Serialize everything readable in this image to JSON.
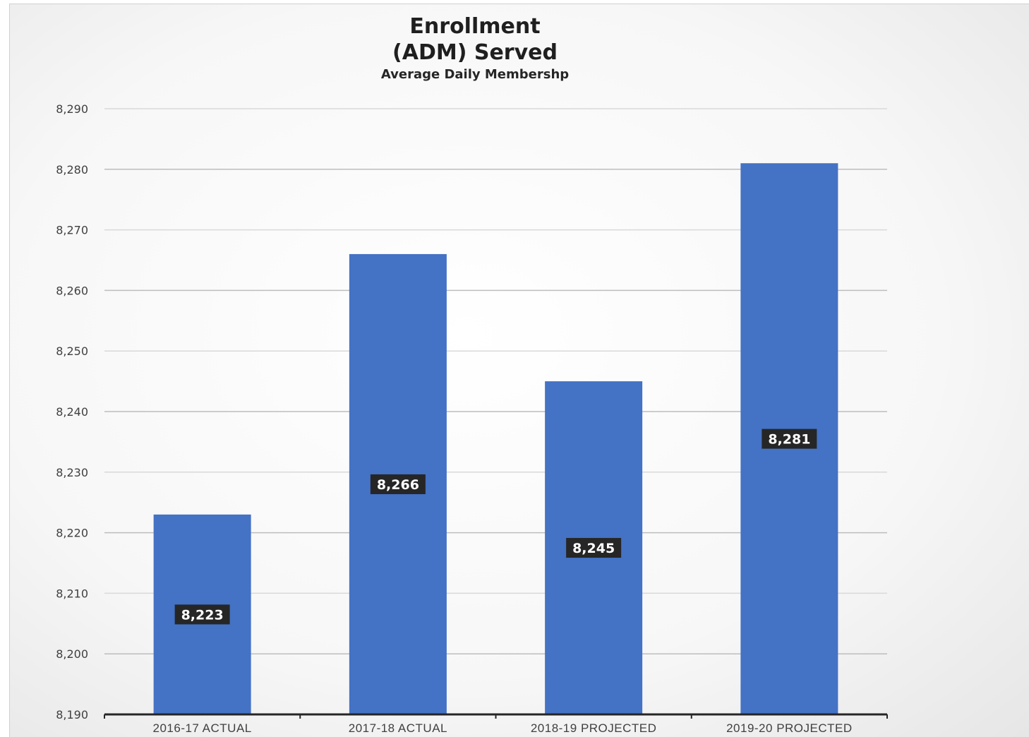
{
  "chart_data": {
    "type": "bar",
    "title": "Enrollment",
    "title_line2": "(ADM) Served",
    "subtitle": "Average Daily Membershp",
    "xlabel": "",
    "ylabel": "",
    "categories": [
      "2016-17 ACTUAL",
      "2017-18 ACTUAL",
      "2018-19 PROJECTED",
      "2019-20 PROJECTED"
    ],
    "values": [
      8223,
      8266,
      8245,
      8281
    ],
    "data_labels": [
      "8,223",
      "8,266",
      "8,245",
      "8,281"
    ],
    "ylim": [
      8190,
      8290
    ],
    "yticks": [
      8190,
      8200,
      8210,
      8220,
      8230,
      8240,
      8250,
      8260,
      8270,
      8280,
      8290
    ],
    "ytick_labels": [
      "8,190",
      "8,200",
      "8,210",
      "8,220",
      "8,230",
      "8,240",
      "8,250",
      "8,260",
      "8,270",
      "8,280",
      "8,290"
    ],
    "grid": true,
    "legend": "none",
    "bar_color": "#4472c4",
    "label_bg_color": "#262626",
    "label_text_color": "#ffffff"
  }
}
